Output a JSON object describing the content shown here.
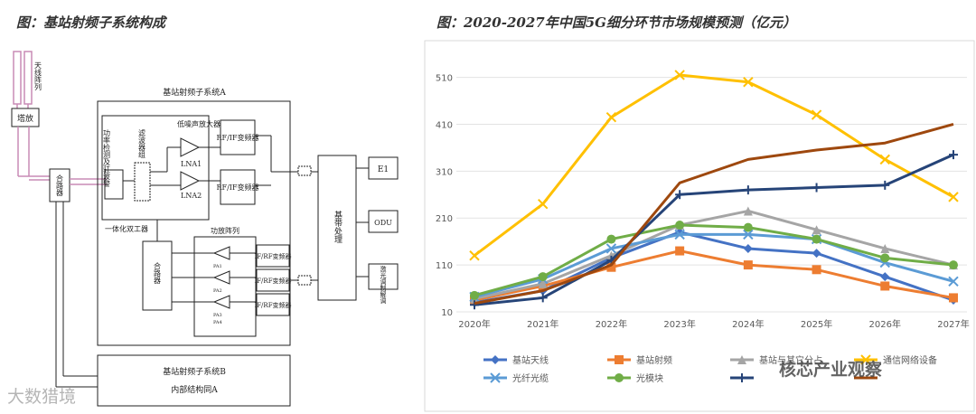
{
  "left_figure": {
    "caption": "图：基站射频子系统构成",
    "labels": {
      "antenna_array": "天线阵列",
      "tower_amp": "塔放",
      "combiner_outer": "合路器",
      "subsystem_a": "基站射频子系统A",
      "power_detect": "功率检测及驻波警",
      "filter_bank": "滤波器组",
      "lna_title": "低噪声放大器",
      "lna1": "LNA1",
      "lna2": "LNA2",
      "rfif_1": "RF/IF变频器",
      "rfif_2": "RF/IF变频器",
      "duplexer": "一体化双工器",
      "pa_array": "功放阵列",
      "combiner_inner": "合路器",
      "ifrf_1": "IF/RF变频器",
      "ifrf_2": "IF/RF变频器",
      "ifrf_3": "IF/RF变频器",
      "pa1": "PA1",
      "pa2": "PA2",
      "pa3": "PA3",
      "pa4": "PA4",
      "baseband": "基带处理",
      "e1": "E1",
      "odu": "ODU",
      "laser": "激光调制解调",
      "subsystem_b": "基站射频子系统B",
      "internal_a": "内部结构同A"
    }
  },
  "chart_data": {
    "type": "line",
    "title": "图：2020-2027年中国5G细分环节市场规模预测（亿元）",
    "categories": [
      "2020年",
      "2021年",
      "2022年",
      "2023年",
      "2024年",
      "2025年",
      "2026年",
      "2027年"
    ],
    "y_ticks": [
      10,
      110,
      210,
      310,
      410,
      510
    ],
    "ylim": [
      10,
      540
    ],
    "grid": "horizontal",
    "legend_position": "bottom",
    "series": [
      {
        "name": "基站天线",
        "color": "#4472c4",
        "marker": "diamond",
        "values": [
          30,
          55,
          125,
          180,
          145,
          135,
          85,
          35
        ]
      },
      {
        "name": "基站射频",
        "color": "#ed7d31",
        "marker": "square",
        "values": [
          35,
          65,
          105,
          140,
          110,
          100,
          65,
          40
        ]
      },
      {
        "name": "基站与其它分占",
        "color": "#a5a5a5",
        "marker": "triangle",
        "values": [
          38,
          70,
          130,
          195,
          225,
          185,
          145,
          110
        ]
      },
      {
        "name": "通信网络设备",
        "color": "#ffc000",
        "marker": "x",
        "values": [
          130,
          240,
          425,
          515,
          500,
          430,
          335,
          255
        ]
      },
      {
        "name": "光纤光缆",
        "color": "#5b9bd5",
        "marker": "x",
        "values": [
          42,
          80,
          145,
          175,
          175,
          165,
          115,
          75
        ]
      },
      {
        "name": "光模块",
        "color": "#70ad47",
        "marker": "circle",
        "values": [
          45,
          85,
          165,
          195,
          190,
          165,
          125,
          110
        ]
      },
      {
        "name": "",
        "color": "#264478",
        "marker": "plus",
        "values": [
          25,
          40,
          120,
          260,
          270,
          275,
          280,
          345
        ]
      },
      {
        "name": "",
        "color": "#9e480e",
        "marker": "none",
        "values": [
          28,
          55,
          110,
          285,
          335,
          355,
          370,
          410
        ]
      }
    ]
  },
  "watermarks": {
    "left": "大数猎境",
    "right": "核芯产业观察"
  }
}
